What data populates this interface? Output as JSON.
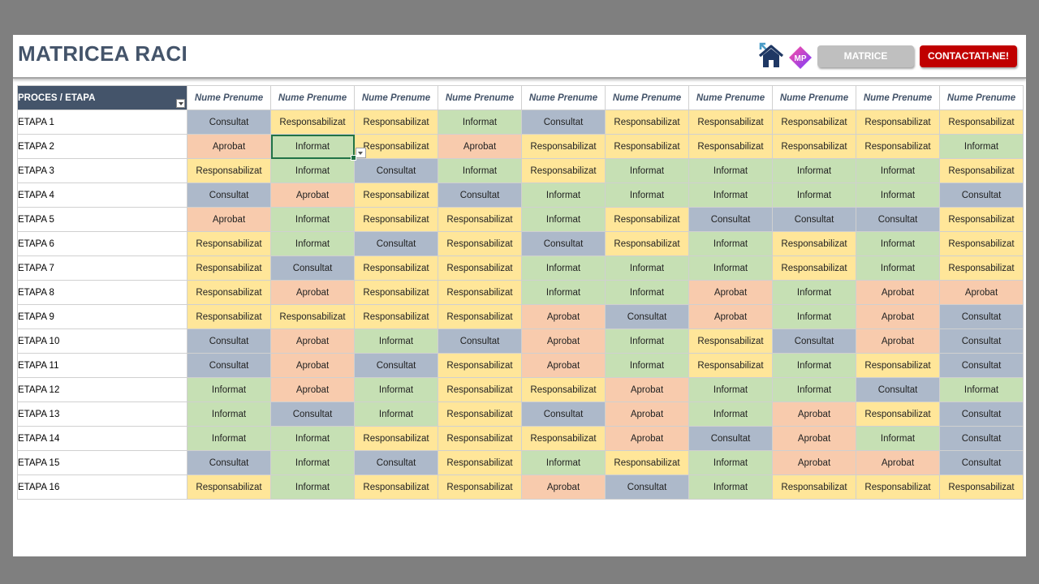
{
  "header": {
    "title": "MATRICEA RACI",
    "matrice_label": "MATRICE",
    "contact_label": "CONTACTATI-NE!",
    "home_icon": "home-icon",
    "logo_icon": "mp-logo-icon",
    "logo_text": "MP"
  },
  "table": {
    "corner_label": "PROCES / ETAPA",
    "people": [
      "Nume Prenume",
      "Nume Prenume",
      "Nume Prenume",
      "Nume Prenume",
      "Nume Prenume",
      "Nume Prenume",
      "Nume Prenume",
      "Nume Prenume",
      "Nume Prenume",
      "Nume Prenume"
    ],
    "selected_cell": {
      "row": 1,
      "col": 1
    },
    "rows": [
      {
        "stage": "ETAPA 1",
        "roles": [
          "Consultat",
          "Responsabilizat",
          "Responsabilizat",
          "Informat",
          "Consultat",
          "Responsabilizat",
          "Responsabilizat",
          "Responsabilizat",
          "Responsabilizat",
          "Responsabilizat"
        ]
      },
      {
        "stage": "ETAPA 2",
        "roles": [
          "Aprobat",
          "Informat",
          "Responsabilizat",
          "Aprobat",
          "Responsabilizat",
          "Responsabilizat",
          "Responsabilizat",
          "Responsabilizat",
          "Responsabilizat",
          "Informat"
        ]
      },
      {
        "stage": "ETAPA 3",
        "roles": [
          "Responsabilizat",
          "Informat",
          "Consultat",
          "Informat",
          "Responsabilizat",
          "Informat",
          "Informat",
          "Informat",
          "Informat",
          "Responsabilizat"
        ]
      },
      {
        "stage": "ETAPA 4",
        "roles": [
          "Consultat",
          "Aprobat",
          "Responsabilizat",
          "Consultat",
          "Informat",
          "Informat",
          "Informat",
          "Informat",
          "Informat",
          "Consultat"
        ]
      },
      {
        "stage": "ETAPA 5",
        "roles": [
          "Aprobat",
          "Informat",
          "Responsabilizat",
          "Responsabilizat",
          "Informat",
          "Responsabilizat",
          "Consultat",
          "Consultat",
          "Consultat",
          "Responsabilizat"
        ]
      },
      {
        "stage": "ETAPA 6",
        "roles": [
          "Responsabilizat",
          "Informat",
          "Consultat",
          "Responsabilizat",
          "Consultat",
          "Responsabilizat",
          "Informat",
          "Responsabilizat",
          "Informat",
          "Responsabilizat"
        ]
      },
      {
        "stage": "ETAPA 7",
        "roles": [
          "Responsabilizat",
          "Consultat",
          "Responsabilizat",
          "Responsabilizat",
          "Informat",
          "Informat",
          "Informat",
          "Responsabilizat",
          "Informat",
          "Responsabilizat"
        ]
      },
      {
        "stage": "ETAPA 8",
        "roles": [
          "Responsabilizat",
          "Aprobat",
          "Responsabilizat",
          "Responsabilizat",
          "Informat",
          "Informat",
          "Aprobat",
          "Informat",
          "Aprobat",
          "Aprobat"
        ]
      },
      {
        "stage": "ETAPA 9",
        "roles": [
          "Responsabilizat",
          "Responsabilizat",
          "Responsabilizat",
          "Responsabilizat",
          "Aprobat",
          "Consultat",
          "Aprobat",
          "Informat",
          "Aprobat",
          "Consultat"
        ]
      },
      {
        "stage": "ETAPA 10",
        "roles": [
          "Consultat",
          "Aprobat",
          "Informat",
          "Consultat",
          "Aprobat",
          "Informat",
          "Responsabilizat",
          "Consultat",
          "Aprobat",
          "Consultat"
        ]
      },
      {
        "stage": "ETAPA 11",
        "roles": [
          "Consultat",
          "Aprobat",
          "Consultat",
          "Responsabilizat",
          "Aprobat",
          "Informat",
          "Responsabilizat",
          "Informat",
          "Responsabilizat",
          "Consultat"
        ]
      },
      {
        "stage": "ETAPA 12",
        "roles": [
          "Informat",
          "Aprobat",
          "Informat",
          "Responsabilizat",
          "Responsabilizat",
          "Aprobat",
          "Informat",
          "Informat",
          "Consultat",
          "Informat"
        ]
      },
      {
        "stage": "ETAPA 13",
        "roles": [
          "Informat",
          "Consultat",
          "Informat",
          "Responsabilizat",
          "Consultat",
          "Aprobat",
          "Informat",
          "Aprobat",
          "Responsabilizat",
          "Consultat"
        ]
      },
      {
        "stage": "ETAPA 14",
        "roles": [
          "Informat",
          "Informat",
          "Responsabilizat",
          "Responsabilizat",
          "Responsabilizat",
          "Aprobat",
          "Consultat",
          "Aprobat",
          "Informat",
          "Consultat"
        ]
      },
      {
        "stage": "ETAPA 15",
        "roles": [
          "Consultat",
          "Informat",
          "Consultat",
          "Responsabilizat",
          "Informat",
          "Responsabilizat",
          "Informat",
          "Aprobat",
          "Aprobat",
          "Consultat"
        ]
      },
      {
        "stage": "ETAPA 16",
        "roles": [
          "Responsabilizat",
          "Informat",
          "Responsabilizat",
          "Responsabilizat",
          "Aprobat",
          "Consultat",
          "Informat",
          "Responsabilizat",
          "Responsabilizat",
          "Responsabilizat"
        ]
      }
    ]
  },
  "colors": {
    "Consultat": "#adb9ca",
    "Responsabilizat": "#ffe699",
    "Informat": "#c6e0b4",
    "Aprobat": "#f8cbad",
    "header_dark": "#44546a",
    "contact_button": "#c00000",
    "matrice_button": "#bfbfbf"
  }
}
